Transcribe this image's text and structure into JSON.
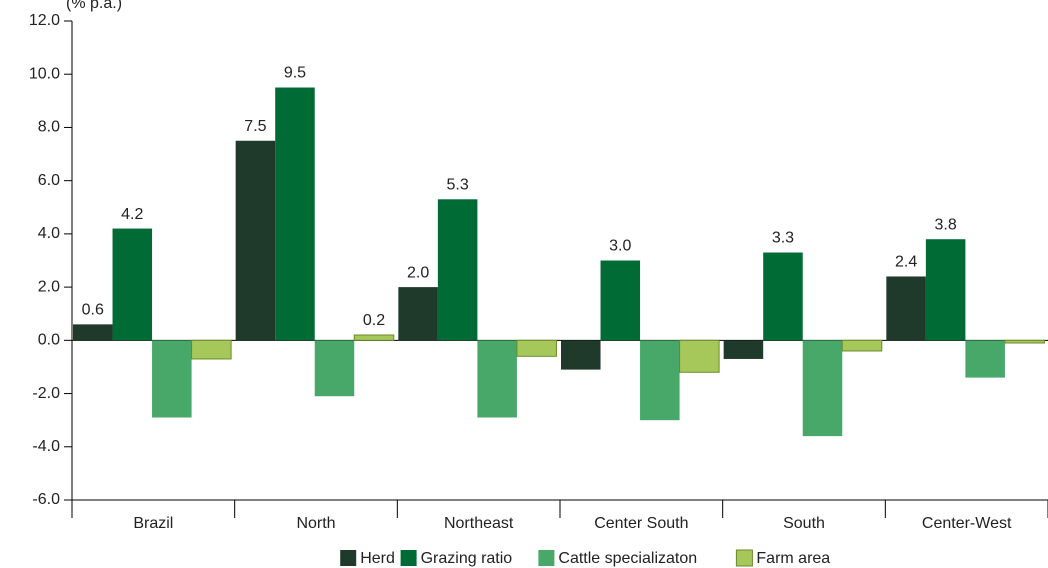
{
  "chart_data": {
    "type": "bar",
    "y_label": "(% p.a.)",
    "categories": [
      "Brazil",
      "North",
      "Northeast",
      "Center South",
      "South",
      "Center-West"
    ],
    "series": [
      {
        "name": "Herd",
        "color": "#1f3a2a",
        "values": [
          0.6,
          7.5,
          2.0,
          -1.1,
          -0.7,
          2.4
        ],
        "value_labels": [
          "0.6",
          "7.5",
          "2.0",
          null,
          null,
          "2.4"
        ]
      },
      {
        "name": "Grazing ratio",
        "color": "#006b35",
        "values": [
          4.2,
          9.5,
          5.3,
          3.0,
          3.3,
          3.8
        ],
        "value_labels": [
          "4.2",
          "9.5",
          "5.3",
          "3.0",
          "3.3",
          "3.8"
        ]
      },
      {
        "name": "Cattle specializaton",
        "color": "#47a86a",
        "values": [
          -2.9,
          -2.1,
          -2.9,
          -3.0,
          -3.6,
          -1.4
        ]
      },
      {
        "name": "Farm area",
        "color": "#a6c85a",
        "values": [
          -0.7,
          0.2,
          -0.6,
          -1.2,
          -0.4,
          -0.1
        ],
        "value_labels": [
          null,
          "0.2",
          null,
          null,
          null,
          null
        ]
      }
    ],
    "ylim": [
      -6,
      12
    ],
    "yticks": [
      {
        "value": -6,
        "label": "-6.0"
      },
      {
        "value": -4,
        "label": "-4.0"
      },
      {
        "value": -2,
        "label": "-2.0"
      },
      {
        "value": 0,
        "label": "0.0"
      },
      {
        "value": 2,
        "label": "2.0"
      },
      {
        "value": 4,
        "label": "4.0"
      },
      {
        "value": 6,
        "label": "6.0"
      },
      {
        "value": 8,
        "label": "8.0"
      },
      {
        "value": 10,
        "label": "10.0"
      },
      {
        "value": 12,
        "label": "12.0"
      }
    ],
    "legend": "bottom"
  }
}
